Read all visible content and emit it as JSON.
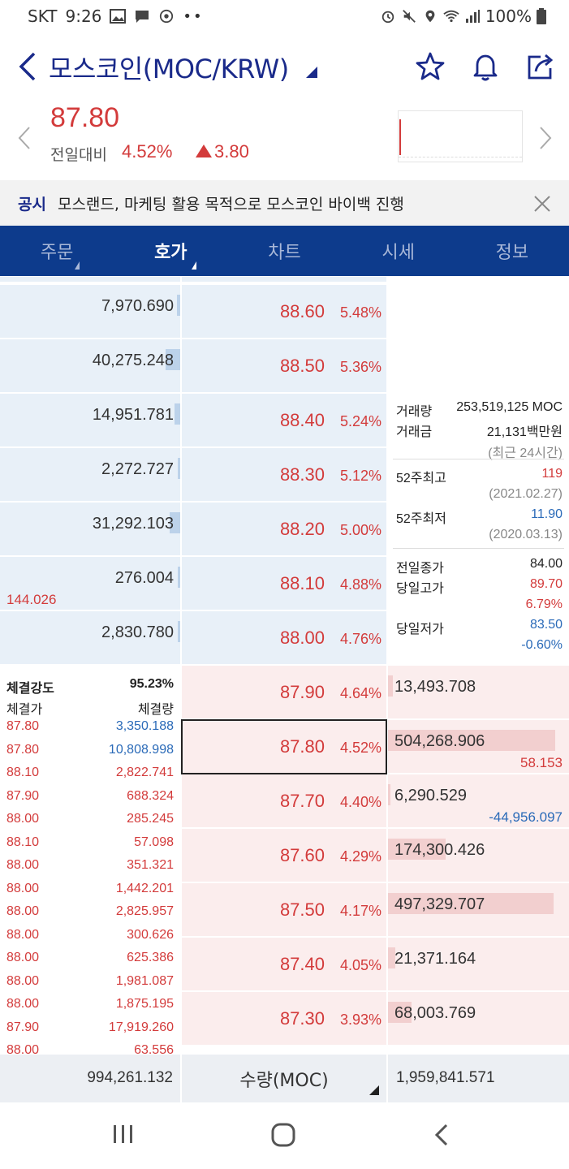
{
  "status_bar": {
    "carrier": "SKT",
    "time": "9:26",
    "battery": "100%",
    "icons_left": [
      "image-icon",
      "message-icon",
      "chrome-icon",
      "more-dots-icon"
    ],
    "icons_right": [
      "alarm-icon",
      "mute-icon",
      "location-icon",
      "wifi-icon",
      "signal-icon",
      "battery-icon"
    ]
  },
  "header": {
    "title": "모스코인(MOC/KRW)"
  },
  "price": {
    "current": "87.80",
    "prev_label": "전일대비",
    "change_pct": "4.52%",
    "change_abs": "3.80",
    "direction": "up"
  },
  "notice": {
    "tag": "공시",
    "text": "모스랜드, 마케팅 활용 목적으로 모스코인 바이백 진행"
  },
  "tabs": [
    {
      "label": "주문",
      "caret": true,
      "active": false
    },
    {
      "label": "호가",
      "caret": true,
      "active": true
    },
    {
      "label": "차트",
      "caret": false,
      "active": false
    },
    {
      "label": "시세",
      "caret": false,
      "active": false
    },
    {
      "label": "정보",
      "caret": false,
      "active": false
    }
  ],
  "asks": [
    {
      "volume": "7,970.690",
      "price": "88.60",
      "pct": "5.48%",
      "bar": 0.02
    },
    {
      "volume": "40,275.248",
      "price": "88.50",
      "pct": "5.36%",
      "bar": 0.08
    },
    {
      "volume": "14,951.781",
      "price": "88.40",
      "pct": "5.24%",
      "bar": 0.03
    },
    {
      "volume": "2,272.727",
      "price": "88.30",
      "pct": "5.12%",
      "bar": 0.006
    },
    {
      "volume": "31,292.103",
      "price": "88.20",
      "pct": "5.00%",
      "bar": 0.06
    },
    {
      "volume": "276.004",
      "price": "88.10",
      "pct": "4.88%",
      "bar": 0.001,
      "sub": "144.026"
    },
    {
      "volume": "2,830.780",
      "price": "88.00",
      "pct": "4.76%",
      "bar": 0.006
    }
  ],
  "bids": [
    {
      "volume": "13,493.708",
      "price": "87.90",
      "pct": "4.64%",
      "bar": 0.025
    },
    {
      "volume": "504,268.906",
      "price": "87.80",
      "pct": "4.52%",
      "bar": 0.93,
      "sub": "58.153",
      "sub_color": "#d33b3b",
      "current": true
    },
    {
      "volume": "6,290.529",
      "price": "87.70",
      "pct": "4.40%",
      "bar": 0.012,
      "sub": "-44,956.097",
      "sub_color": "#2a6ab8"
    },
    {
      "volume": "174,300.426",
      "price": "87.60",
      "pct": "4.29%",
      "bar": 0.32
    },
    {
      "volume": "497,329.707",
      "price": "87.50",
      "pct": "4.17%",
      "bar": 0.92
    },
    {
      "volume": "21,371.164",
      "price": "87.40",
      "pct": "4.05%",
      "bar": 0.04
    },
    {
      "volume": "68,003.769",
      "price": "87.30",
      "pct": "3.93%",
      "bar": 0.13
    }
  ],
  "info": {
    "trade_volume_label": "거래량",
    "trade_volume": "253,519,125 MOC",
    "trade_amount_label": "거래금",
    "trade_amount": "21,131백만원",
    "period": "(최근 24시간)",
    "high52_label": "52주최고",
    "high52": "119",
    "high52_date": "(2021.02.27)",
    "low52_label": "52주최저",
    "low52": "11.90",
    "low52_date": "(2020.03.13)",
    "prev_close_label": "전일종가",
    "prev_close": "84.00",
    "day_high_label": "당일고가",
    "day_high": "89.70",
    "day_high_pct": "6.79%",
    "day_low_label": "당일저가",
    "day_low": "83.50",
    "day_low_pct": "-0.60%"
  },
  "ticks": {
    "strength_label": "체결강도",
    "strength": "95.23%",
    "price_label": "체결가",
    "qty_label": "체결량",
    "rows": [
      {
        "price": "87.80",
        "qty": "3,350.188",
        "color": "#2a6ab8"
      },
      {
        "price": "87.80",
        "qty": "10,808.998",
        "color": "#2a6ab8"
      },
      {
        "price": "88.10",
        "qty": "2,822.741",
        "color": "#d33b3b"
      },
      {
        "price": "87.90",
        "qty": "688.324",
        "color": "#d33b3b"
      },
      {
        "price": "88.00",
        "qty": "285.245",
        "color": "#d33b3b"
      },
      {
        "price": "88.10",
        "qty": "57.098",
        "color": "#d33b3b"
      },
      {
        "price": "88.00",
        "qty": "351.321",
        "color": "#d33b3b"
      },
      {
        "price": "88.00",
        "qty": "1,442.201",
        "color": "#d33b3b"
      },
      {
        "price": "88.00",
        "qty": "2,825.957",
        "color": "#d33b3b"
      },
      {
        "price": "88.00",
        "qty": "300.626",
        "color": "#d33b3b"
      },
      {
        "price": "88.00",
        "qty": "625.386",
        "color": "#d33b3b"
      },
      {
        "price": "88.00",
        "qty": "1,981.087",
        "color": "#d33b3b"
      },
      {
        "price": "88.00",
        "qty": "1,875.195",
        "color": "#d33b3b"
      },
      {
        "price": "87.90",
        "qty": "17,919.260",
        "color": "#d33b3b"
      },
      {
        "price": "88.00",
        "qty": "63.556",
        "color": "#d33b3b"
      }
    ]
  },
  "footer": {
    "ask_total": "994,261.132",
    "unit_label": "수량(MOC)",
    "bid_total": "1,959,841.571"
  },
  "colors": {
    "brand": "#0d3b8c",
    "up": "#d33b3b",
    "down": "#2a6ab8",
    "ask_bg": "#e8f0f8",
    "bid_bg": "#fbeded"
  }
}
